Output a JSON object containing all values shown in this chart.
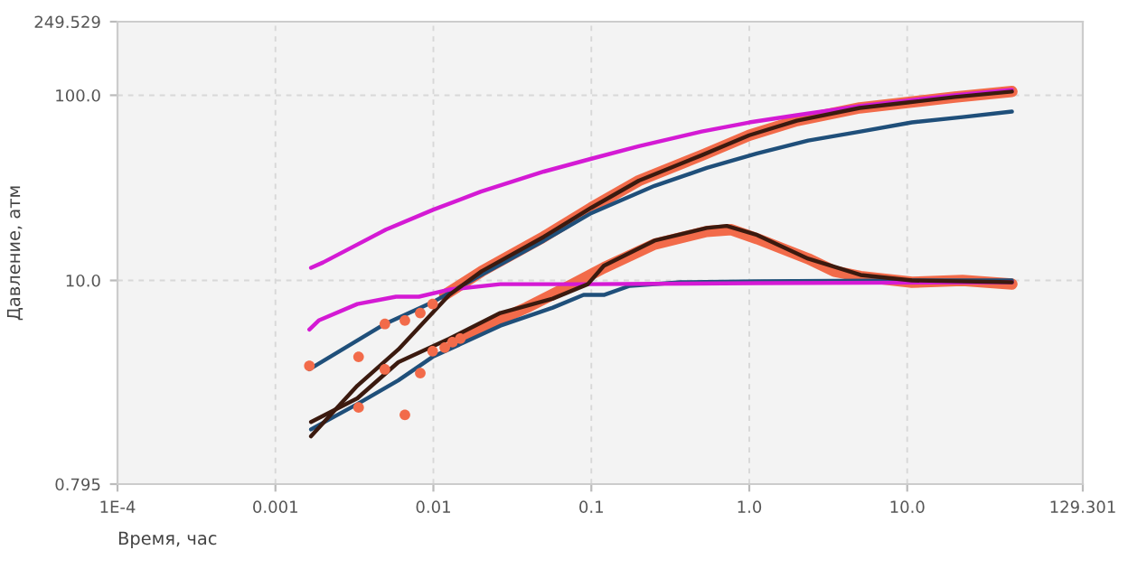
{
  "chart_data": {
    "type": "line",
    "xlabel": "Время, час",
    "ylabel": "Давление, атм",
    "log": "xy",
    "grid": true,
    "xlim": [
      0.0001,
      129.301
    ],
    "xticks": [
      {
        "value": 0.0001,
        "label": "1E-4"
      },
      0.001,
      0.01,
      0.1,
      {
        "value": 1,
        "label": "1.0"
      },
      {
        "value": 10,
        "label": "10.0"
      },
      129.301
    ],
    "ylim": [
      0.795,
      249.529
    ],
    "yticks": [
      0.795,
      {
        "value": 10,
        "label": "10.0"
      },
      {
        "value": 100,
        "label": "100.0"
      },
      249.529
    ],
    "series": [
      {
        "type": "scatter",
        "marker": "circle",
        "color": "#f26b4a",
        "x": [
          0.00164,
          0.00336,
          0.00493,
          0.0066,
          0.00826,
          0.00989
        ],
        "values": [
          3.46,
          3.87,
          5.82,
          6.08,
          6.67,
          7.46
        ]
      },
      {
        "type": "scatter",
        "marker": "circle",
        "color": "#f26b4a",
        "x": [
          0.00336,
          0.00493,
          0.0066,
          0.00826,
          0.00989,
          0.0118,
          0.0132,
          0.0148
        ],
        "values": [
          2.06,
          3.31,
          1.88,
          3.16,
          4.15,
          4.34,
          4.64,
          4.85
        ]
      },
      {
        "marker": "circle",
        "color": "#f26b4a",
        "x": [
          0.0118,
          0.0202,
          0.05,
          0.1,
          0.2,
          0.5,
          1,
          2,
          5,
          10,
          20,
          46
        ],
        "values": [
          8.35,
          11.2,
          17.2,
          24.7,
          34.6,
          47.4,
          60.8,
          72.9,
          85.4,
          91.3,
          97.8,
          104.7
        ]
      },
      {
        "marker": "circle",
        "color": "#f26b4a",
        "x": [
          0.0166,
          0.0202,
          0.0389,
          0.0764,
          0.12,
          0.251,
          0.538,
          0.77,
          1.12,
          2.36,
          3.46,
          5.07,
          10.7,
          22.4,
          46
        ],
        "values": [
          5.08,
          5.56,
          7.13,
          9.55,
          11.7,
          15.7,
          18.4,
          18.8,
          16.8,
          13.1,
          11.2,
          10.5,
          9.78,
          10.0,
          9.55
        ]
      },
      {
        "color": "#1f4f7a",
        "x": [
          0.00164,
          0.00493,
          0.0099,
          0.02,
          0.05,
          0.1,
          0.251,
          0.538,
          1.12,
          2.36,
          5.07,
          10.7,
          22.4,
          46
        ],
        "values": [
          3.31,
          5.82,
          7.63,
          10.7,
          16.4,
          23.1,
          32.4,
          40.5,
          48.5,
          56.9,
          63.7,
          71.3,
          76.2,
          81.6
        ]
      },
      {
        "color": "#1f4f7a",
        "x": [
          0.00168,
          0.0033,
          0.006,
          0.0099,
          0.0265,
          0.057,
          0.0893,
          0.12,
          0.175,
          0.368,
          1.12,
          10.7,
          46
        ],
        "values": [
          1.57,
          2.15,
          2.89,
          3.87,
          5.69,
          7.13,
          8.35,
          8.35,
          9.35,
          9.78,
          9.89,
          10.0,
          10.0
        ]
      },
      {
        "color": "#d41ad4",
        "x": [
          0.00168,
          0.002,
          0.005,
          0.01,
          0.02,
          0.05,
          0.1,
          0.2,
          0.5,
          1,
          2,
          5,
          10,
          20,
          46
        ],
        "values": [
          11.7,
          12.5,
          18.8,
          24.1,
          30.2,
          38.7,
          45.4,
          53.1,
          63.7,
          71.3,
          78.0,
          87.3,
          93.5,
          100,
          107
        ]
      },
      {
        "color": "#d41ad4",
        "x": [
          0.00164,
          0.00188,
          0.0033,
          0.0058,
          0.0081,
          0.0126,
          0.0265,
          0.095,
          1.12,
          46
        ],
        "values": [
          5.43,
          6.08,
          7.46,
          8.17,
          8.17,
          8.93,
          9.55,
          9.55,
          9.66,
          9.78
        ]
      },
      {
        "color": "#3b1a0f",
        "x": [
          0.00168,
          0.0033,
          0.006,
          0.0126,
          0.0202,
          0.05,
          0.1,
          0.2,
          0.5,
          1,
          2,
          5,
          10,
          20,
          46
        ],
        "values": [
          1.44,
          2.7,
          4.24,
          8.35,
          11.2,
          17.2,
          24.7,
          34.6,
          47.4,
          60.8,
          72.9,
          85.4,
          91.3,
          97.8,
          104.7
        ]
      },
      {
        "color": "#3b1a0f",
        "x": [
          0.00168,
          0.0033,
          0.006,
          0.0126,
          0.0265,
          0.057,
          0.095,
          0.12,
          0.251,
          0.538,
          0.72,
          1.12,
          2.36,
          5.07,
          10.7,
          46
        ],
        "values": [
          1.72,
          2.31,
          3.62,
          4.85,
          6.67,
          7.98,
          9.55,
          12.0,
          16.4,
          19.2,
          19.7,
          17.6,
          13.1,
          10.7,
          10.0,
          9.78
        ]
      }
    ]
  }
}
